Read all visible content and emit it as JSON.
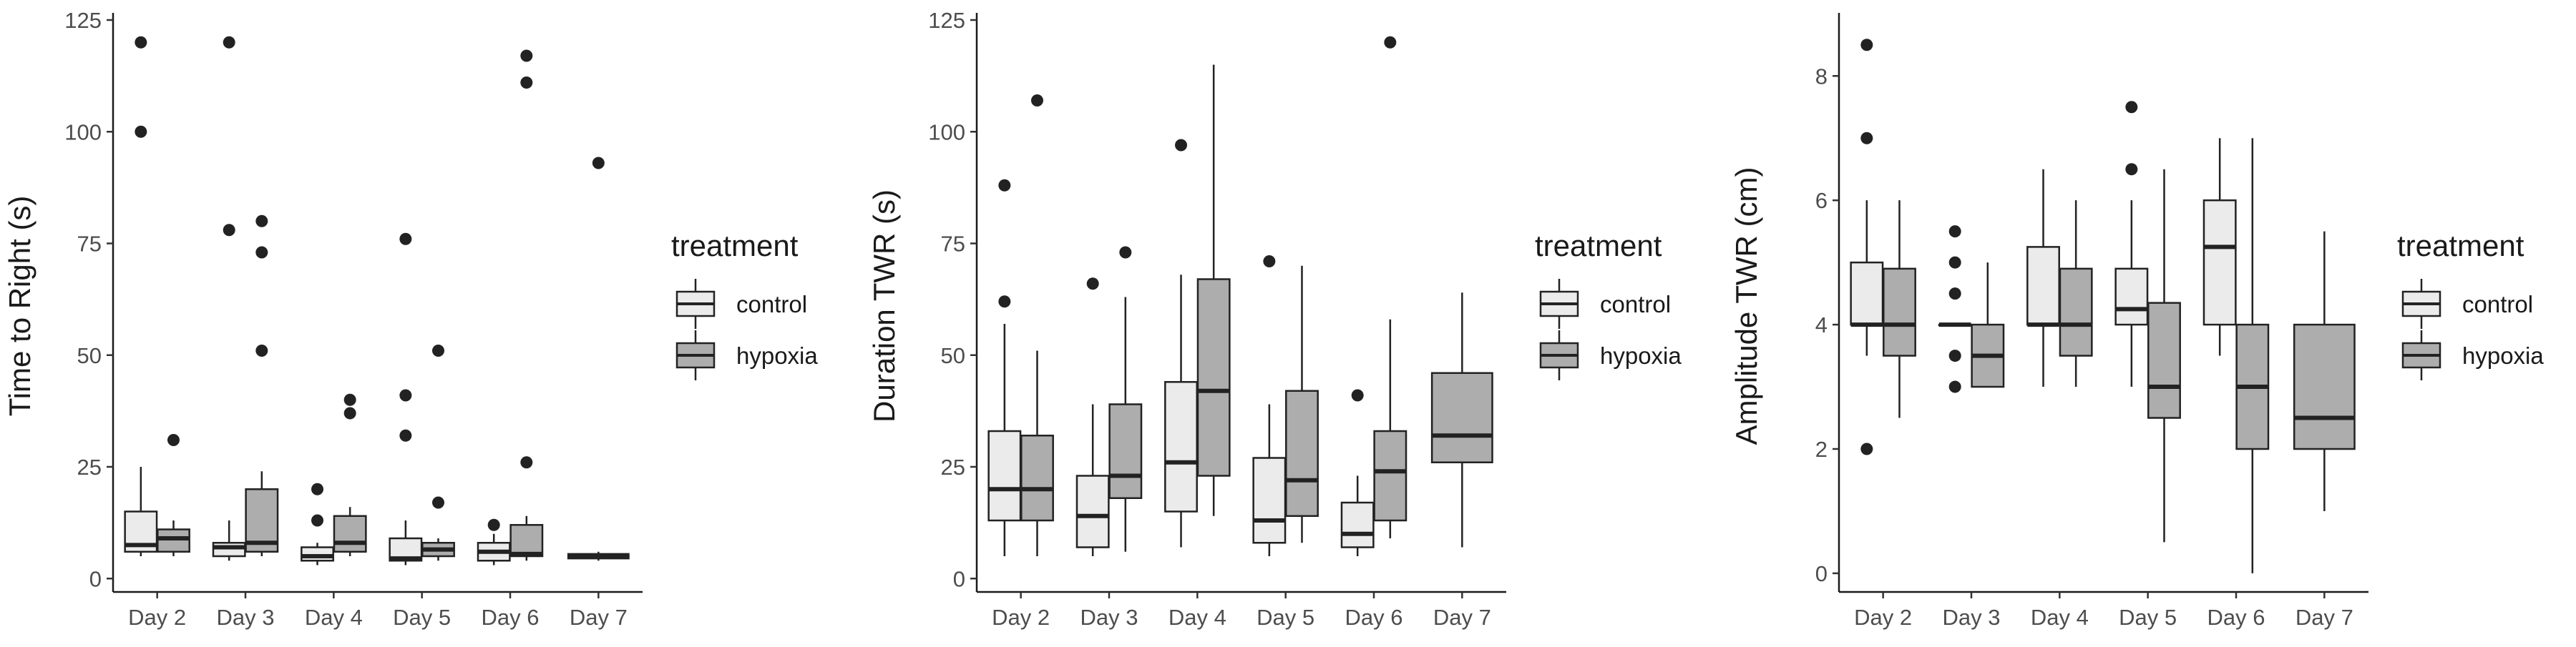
{
  "legend": {
    "title": "treatment",
    "items": [
      {
        "label": "control",
        "color": "#ebebeb"
      },
      {
        "label": "hypoxia",
        "color": "#adadad"
      }
    ]
  },
  "colors": {
    "control": "#ebebeb",
    "hypoxia": "#adadad",
    "outline": "#222222",
    "point": "#222222"
  },
  "chart_data": [
    {
      "type": "boxplot",
      "ylabel": "Time to Right (s)",
      "xlabel": "",
      "ylim": [
        -3,
        125
      ],
      "yticks": [
        0,
        25,
        50,
        75,
        100,
        125
      ],
      "categories": [
        "Day 2",
        "Day 3",
        "Day 4",
        "Day 5",
        "Day 6",
        "Day 7"
      ],
      "series": [
        {
          "name": "control",
          "boxes": [
            {
              "category": "Day 2",
              "whislo": 5,
              "q1": 6,
              "med": 7.5,
              "q3": 15,
              "whishi": 25,
              "fliers": [
                100,
                120
              ]
            },
            {
              "category": "Day 3",
              "whislo": 4,
              "q1": 5,
              "med": 7,
              "q3": 8,
              "whishi": 13,
              "fliers": [
                78,
                120
              ]
            },
            {
              "category": "Day 4",
              "whislo": 3,
              "q1": 4,
              "med": 5,
              "q3": 7,
              "whishi": 8,
              "fliers": [
                13,
                20
              ]
            },
            {
              "category": "Day 5",
              "whislo": 3,
              "q1": 4,
              "med": 4.5,
              "q3": 9,
              "whishi": 13,
              "fliers": [
                32,
                41,
                76
              ]
            },
            {
              "category": "Day 6",
              "whislo": 3,
              "q1": 4,
              "med": 6,
              "q3": 8,
              "whishi": 10,
              "fliers": [
                12
              ]
            },
            null
          ]
        },
        {
          "name": "hypoxia",
          "boxes": [
            {
              "category": "Day 2",
              "whislo": 5,
              "q1": 6,
              "med": 9,
              "q3": 11,
              "whishi": 13,
              "fliers": [
                31
              ]
            },
            {
              "category": "Day 3",
              "whislo": 5,
              "q1": 6,
              "med": 8,
              "q3": 20,
              "whishi": 24,
              "fliers": [
                51,
                73,
                80
              ]
            },
            {
              "category": "Day 4",
              "whislo": 5,
              "q1": 6,
              "med": 8,
              "q3": 14,
              "whishi": 16,
              "fliers": [
                37,
                40
              ]
            },
            {
              "category": "Day 5",
              "whislo": 4,
              "q1": 5,
              "med": 6.5,
              "q3": 8,
              "whishi": 9,
              "fliers": [
                17,
                51
              ]
            },
            {
              "category": "Day 6",
              "whislo": 4,
              "q1": 5,
              "med": 5.5,
              "q3": 12,
              "whishi": 14,
              "fliers": [
                26,
                111,
                117
              ]
            },
            {
              "category": "Day 7",
              "whislo": 4,
              "q1": 4.5,
              "med": 5,
              "q3": 5.5,
              "whishi": 6,
              "fliers": [
                93
              ]
            }
          ]
        }
      ]
    },
    {
      "type": "boxplot",
      "ylabel": "Duration TWR (s)",
      "xlabel": "",
      "ylim": [
        -3,
        125
      ],
      "yticks": [
        0,
        25,
        50,
        75,
        100,
        125
      ],
      "categories": [
        "Day 2",
        "Day 3",
        "Day 4",
        "Day 5",
        "Day 6",
        "Day 7"
      ],
      "series": [
        {
          "name": "control",
          "boxes": [
            {
              "category": "Day 2",
              "whislo": 5,
              "q1": 13,
              "med": 20,
              "q3": 33,
              "whishi": 57,
              "fliers": [
                62,
                88
              ]
            },
            {
              "category": "Day 3",
              "whislo": 5,
              "q1": 7,
              "med": 14,
              "q3": 23,
              "whishi": 39,
              "fliers": [
                66
              ]
            },
            {
              "category": "Day 4",
              "whislo": 7,
              "q1": 15,
              "med": 26,
              "q3": 44,
              "whishi": 68,
              "fliers": [
                97
              ]
            },
            {
              "category": "Day 5",
              "whislo": 5,
              "q1": 8,
              "med": 13,
              "q3": 27,
              "whishi": 39,
              "fliers": [
                71
              ]
            },
            {
              "category": "Day 6",
              "whislo": 5,
              "q1": 7,
              "med": 10,
              "q3": 17,
              "whishi": 23,
              "fliers": [
                41
              ]
            },
            null
          ]
        },
        {
          "name": "hypoxia",
          "boxes": [
            {
              "category": "Day 2",
              "whislo": 5,
              "q1": 13,
              "med": 20,
              "q3": 32,
              "whishi": 51,
              "fliers": [
                107
              ]
            },
            {
              "category": "Day 3",
              "whislo": 6,
              "q1": 18,
              "med": 23,
              "q3": 39,
              "whishi": 63,
              "fliers": [
                73
              ]
            },
            {
              "category": "Day 4",
              "whislo": 14,
              "q1": 23,
              "med": 42,
              "q3": 67,
              "whishi": 115,
              "fliers": []
            },
            {
              "category": "Day 5",
              "whislo": 8,
              "q1": 14,
              "med": 22,
              "q3": 42,
              "whishi": 70,
              "fliers": []
            },
            {
              "category": "Day 6",
              "whislo": 9,
              "q1": 13,
              "med": 24,
              "q3": 33,
              "whishi": 58,
              "fliers": [
                120
              ]
            },
            {
              "category": "Day 7",
              "whislo": 7,
              "q1": 26,
              "med": 32,
              "q3": 46,
              "whishi": 64,
              "fliers": []
            }
          ]
        }
      ]
    },
    {
      "type": "boxplot",
      "ylabel": "Amplitude TWR (cm)",
      "xlabel": "",
      "ylim": [
        -0.3,
        8.9
      ],
      "yticks": [
        0,
        2,
        4,
        6,
        8
      ],
      "categories": [
        "Day 2",
        "Day 3",
        "Day 4",
        "Day 5",
        "Day 6",
        "Day 7"
      ],
      "series": [
        {
          "name": "control",
          "boxes": [
            {
              "category": "Day 2",
              "whislo": 3.5,
              "q1": 4,
              "med": 4,
              "q3": 5,
              "whishi": 6,
              "fliers": [
                2,
                7,
                8.5
              ]
            },
            {
              "category": "Day 3",
              "whislo": 4,
              "q1": 4,
              "med": 4,
              "q3": 4,
              "whishi": 4,
              "fliers": [
                3,
                3.5,
                4.5,
                5,
                5.5
              ]
            },
            {
              "category": "Day 4",
              "whislo": 3,
              "q1": 4,
              "med": 4,
              "q3": 5.25,
              "whishi": 6.5,
              "fliers": []
            },
            {
              "category": "Day 5",
              "whislo": 3,
              "q1": 4,
              "med": 4.25,
              "q3": 4.9,
              "whishi": 6,
              "fliers": [
                6.5,
                7.5
              ]
            },
            {
              "category": "Day 6",
              "whislo": 3.5,
              "q1": 4,
              "med": 5.25,
              "q3": 6,
              "whishi": 7,
              "fliers": []
            },
            null
          ]
        },
        {
          "name": "hypoxia",
          "boxes": [
            {
              "category": "Day 2",
              "whislo": 2.5,
              "q1": 3.5,
              "med": 4,
              "q3": 4.9,
              "whishi": 6,
              "fliers": []
            },
            {
              "category": "Day 3",
              "whislo": 3,
              "q1": 3,
              "med": 3.5,
              "q3": 4,
              "whishi": 5,
              "fliers": []
            },
            {
              "category": "Day 4",
              "whislo": 3,
              "q1": 3.5,
              "med": 4,
              "q3": 4.9,
              "whishi": 6,
              "fliers": []
            },
            {
              "category": "Day 5",
              "whislo": 0.5,
              "q1": 2.5,
              "med": 3,
              "q3": 4.35,
              "whishi": 6.5,
              "fliers": []
            },
            {
              "category": "Day 6",
              "whislo": 0,
              "q1": 2,
              "med": 3,
              "q3": 4,
              "whishi": 7,
              "fliers": []
            },
            {
              "category": "Day 7",
              "whislo": 1,
              "q1": 2,
              "med": 2.5,
              "q3": 4,
              "whishi": 5.5,
              "fliers": []
            }
          ]
        }
      ]
    }
  ]
}
